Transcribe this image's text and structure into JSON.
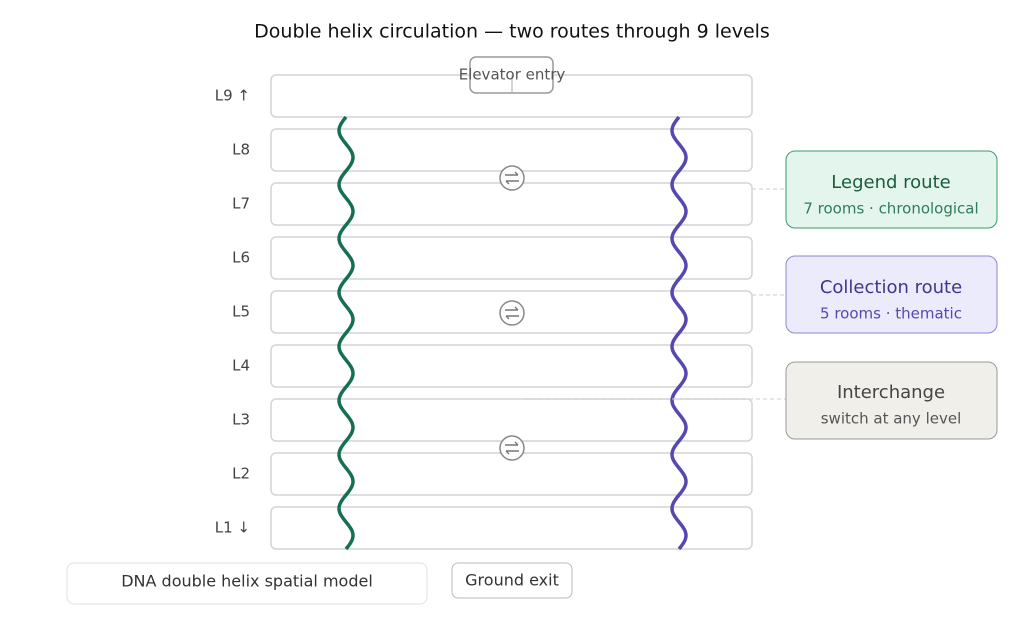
{
  "title": "Double helix circulation — two routes through 9 levels",
  "levels": [
    "L9 ↑",
    "L8",
    "L7",
    "L6",
    "L5",
    "L4",
    "L3",
    "L2",
    "L1 ↓"
  ],
  "elevator_entry": "Elevator entry",
  "callouts": [
    {
      "title": "Legend route",
      "subtitle": "7 rooms · chronological"
    },
    {
      "title": "Collection route",
      "subtitle": "5 rooms · thematic"
    },
    {
      "title": "Interchange",
      "subtitle": "switch at any level"
    }
  ],
  "model_label": "DNA double helix spatial model",
  "ground_exit": "Ground exit"
}
